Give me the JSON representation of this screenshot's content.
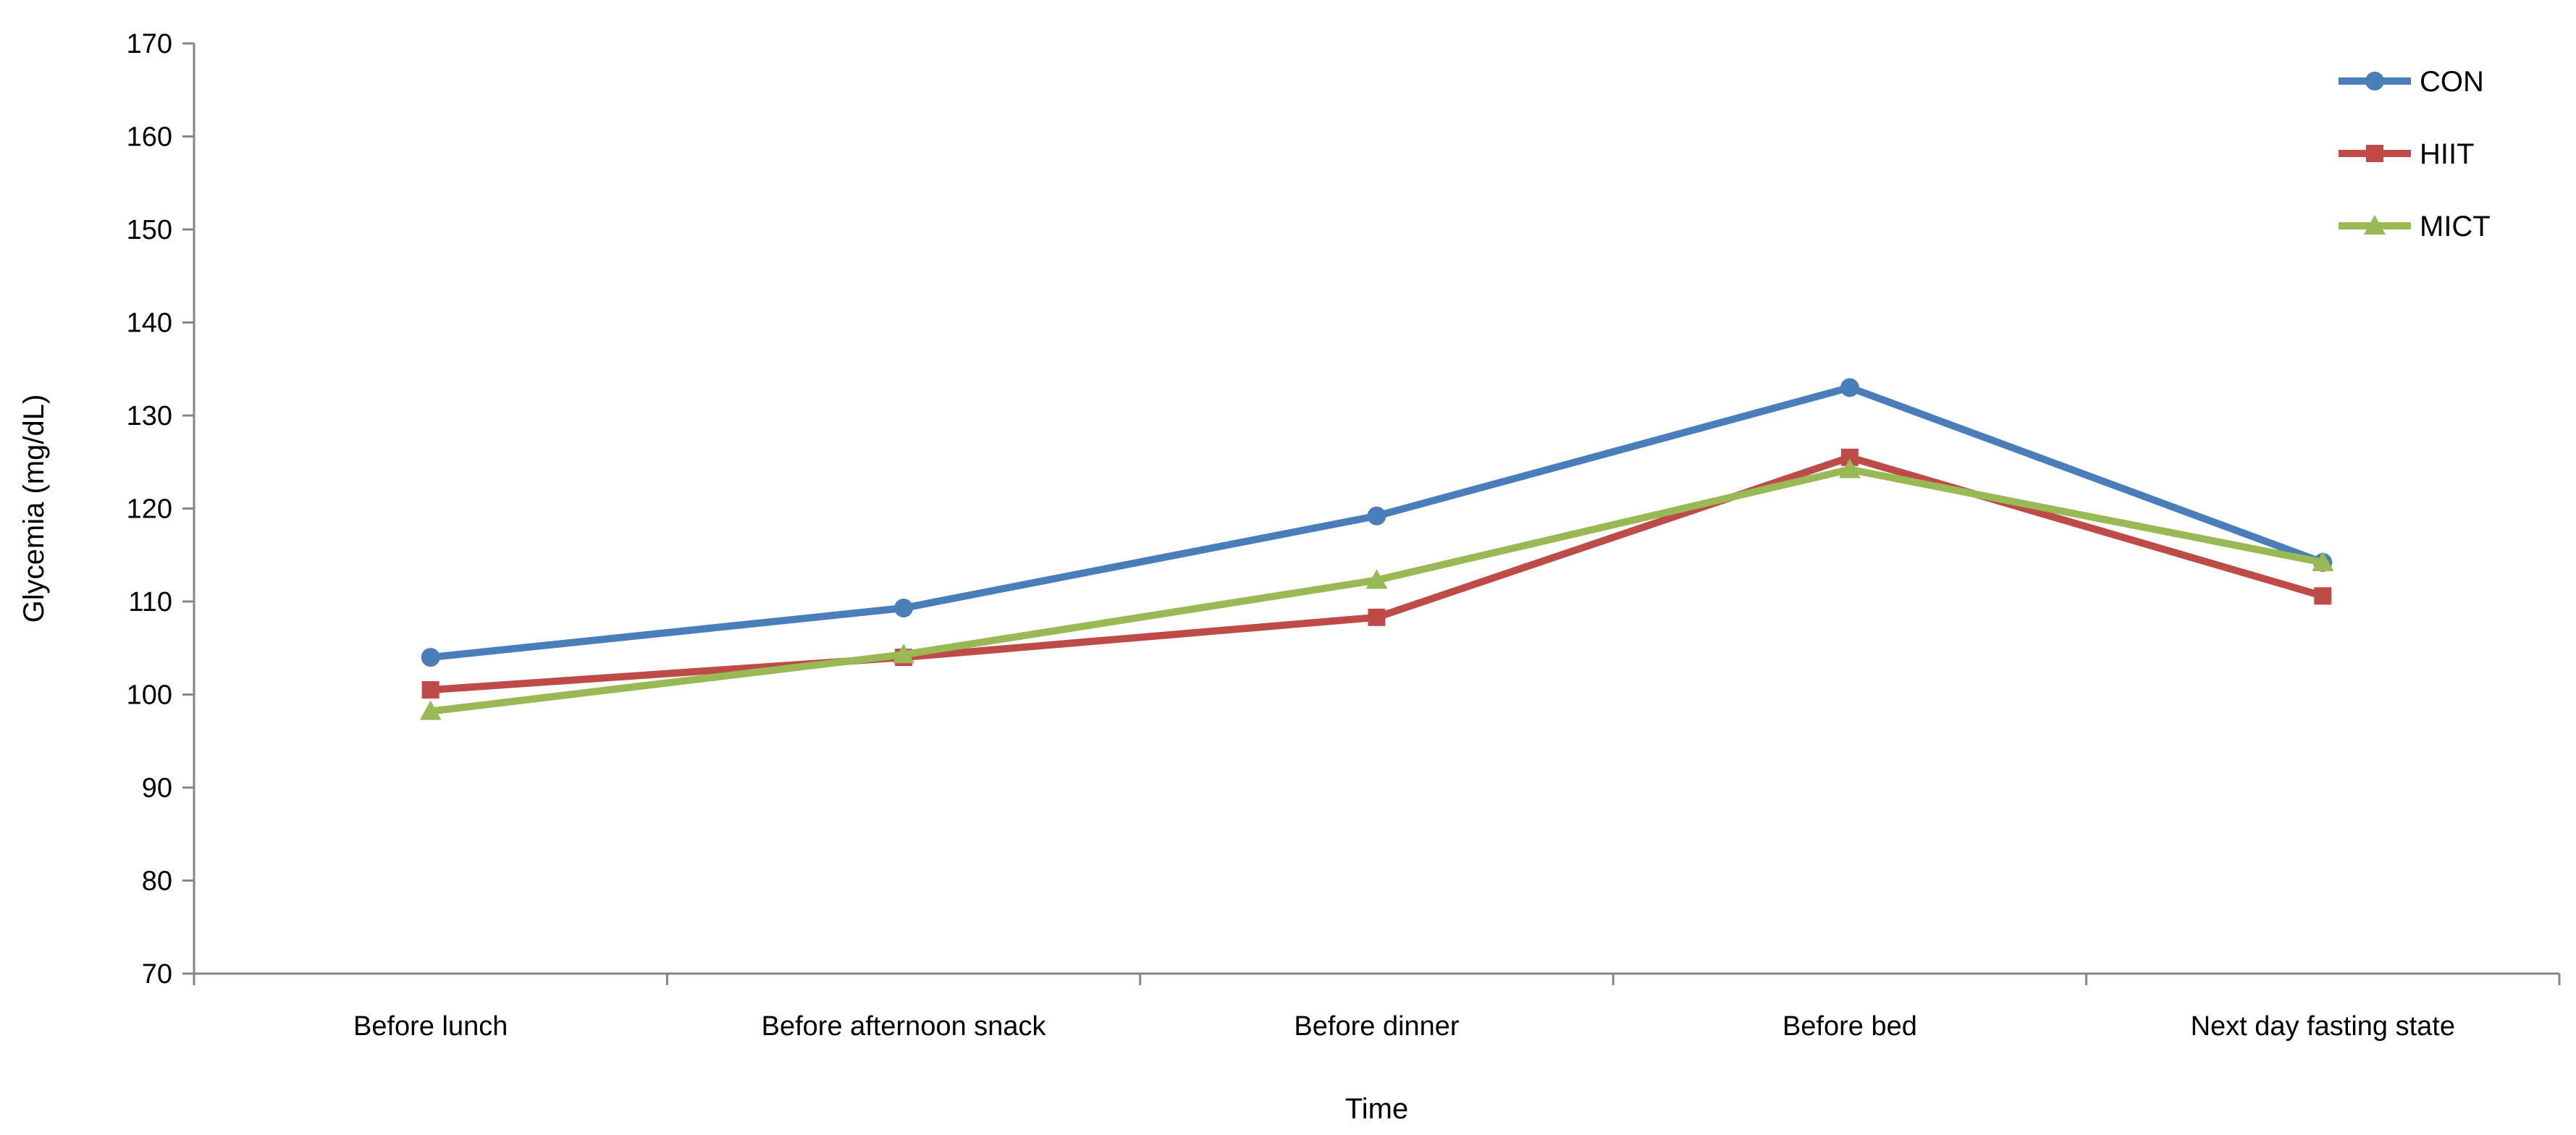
{
  "chart_data": {
    "type": "line",
    "title": "",
    "xlabel": "Time",
    "ylabel": "Glycemia (mg/dL)",
    "ylim": [
      70,
      170
    ],
    "yticks": [
      70,
      80,
      90,
      100,
      110,
      120,
      130,
      140,
      150,
      160,
      170
    ],
    "categories": [
      "Before lunch",
      "Before afternoon snack",
      "Before dinner",
      "Before bed",
      "Next day fasting state"
    ],
    "grid": false,
    "legend_position": "top-right",
    "series": [
      {
        "name": "CON",
        "color": "#4A7EBB",
        "marker": "circle",
        "values": [
          104,
          109.3,
          119.2,
          133,
          114.2
        ]
      },
      {
        "name": "HIIT",
        "color": "#BE4B48",
        "marker": "square",
        "values": [
          100.5,
          104,
          108.3,
          125.5,
          110.6
        ]
      },
      {
        "name": "MICT",
        "color": "#98B954",
        "marker": "triangle",
        "values": [
          98.2,
          104.3,
          112.3,
          124.2,
          114.2
        ]
      }
    ]
  }
}
